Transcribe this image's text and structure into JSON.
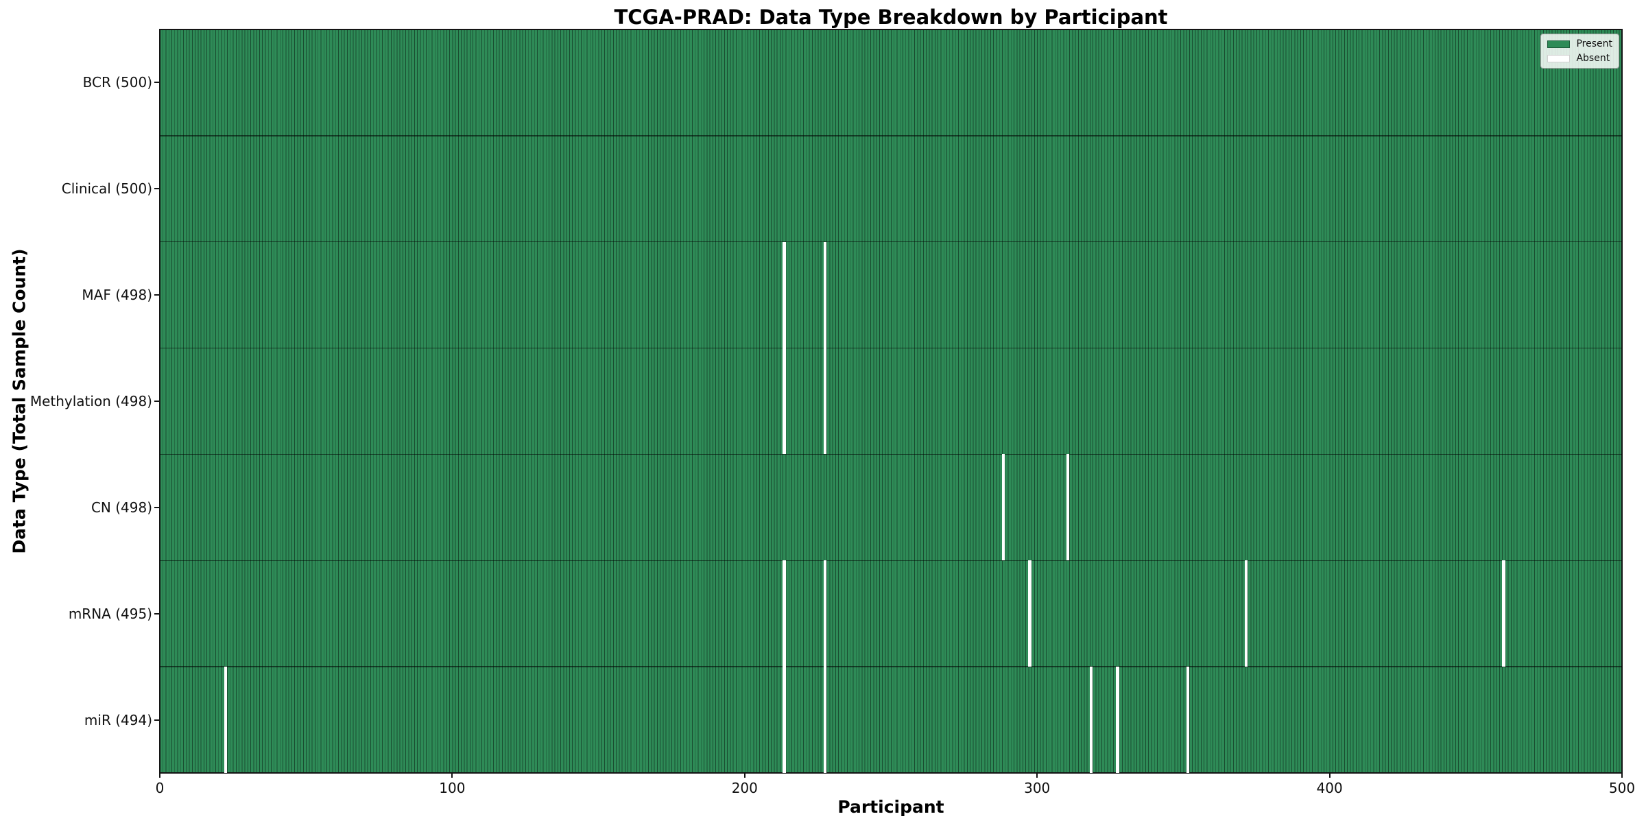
{
  "chart_data": {
    "type": "heatmap",
    "title": "TCGA-PRAD: Data Type Breakdown by Participant",
    "xlabel": "Participant",
    "ylabel": "Data Type (Total Sample Count)",
    "x_range": [
      0,
      500
    ],
    "x_ticks": [
      "0",
      "100",
      "200",
      "300",
      "400",
      "500"
    ],
    "x_tick_values": [
      0,
      100,
      200,
      300,
      400,
      500
    ],
    "n_participants": 500,
    "grid": false,
    "legend_position": "upper right",
    "colors": {
      "present": "#2e8b57",
      "absent": "#ffffff"
    },
    "legend": [
      {
        "label": "Present",
        "color": "#2e8b57"
      },
      {
        "label": "Absent",
        "color": "#ffffff"
      }
    ],
    "rows": [
      {
        "label": "BCR (500)",
        "data_type": "BCR",
        "total": 500,
        "absent_participants": []
      },
      {
        "label": "Clinical (500)",
        "data_type": "Clinical",
        "total": 500,
        "absent_participants": []
      },
      {
        "label": "MAF (498)",
        "data_type": "MAF",
        "total": 498,
        "absent_participants": [
          213,
          227
        ]
      },
      {
        "label": "Methylation (498)",
        "data_type": "Methylation",
        "total": 498,
        "absent_participants": [
          213,
          227
        ]
      },
      {
        "label": "CN (498)",
        "data_type": "CN",
        "total": 498,
        "absent_participants": [
          288,
          310
        ]
      },
      {
        "label": "mRNA (495)",
        "data_type": "mRNA",
        "total": 495,
        "absent_participants": [
          213,
          227,
          297,
          371,
          459
        ]
      },
      {
        "label": "miR (494)",
        "data_type": "miR",
        "total": 494,
        "absent_participants": [
          22,
          213,
          227,
          318,
          327,
          351
        ]
      }
    ]
  }
}
